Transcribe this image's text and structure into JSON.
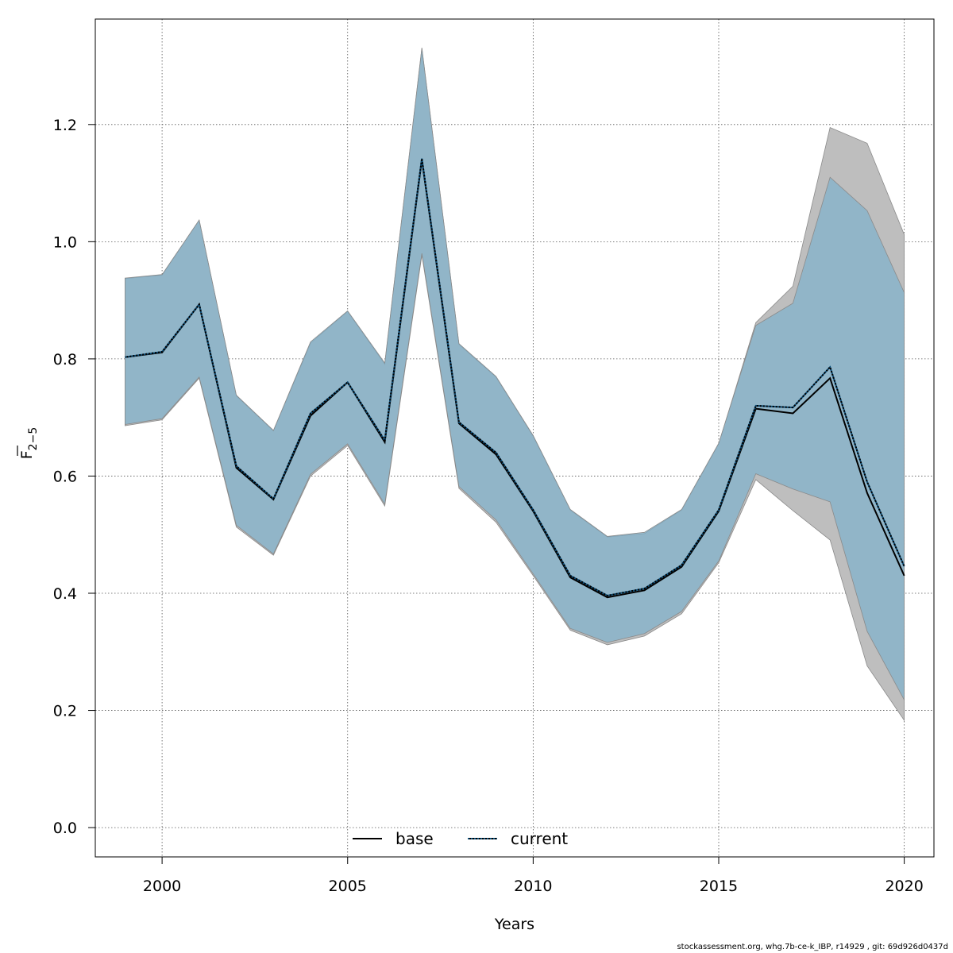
{
  "chart_data": {
    "type": "line",
    "xlabel": "Years",
    "ylabel": "F",
    "ylabel_subscript": "2−5",
    "xlim": [
      1998.2,
      2020.8
    ],
    "ylim": [
      -0.05,
      1.38
    ],
    "x_ticks": [
      2000,
      2005,
      2010,
      2015,
      2020
    ],
    "y_ticks": [
      0.0,
      0.2,
      0.4,
      0.6,
      0.8,
      1.0,
      1.2
    ],
    "y_tick_labels": [
      "0.0",
      "0.2",
      "0.4",
      "0.6",
      "0.8",
      "1.0",
      "1.2"
    ],
    "grid": true,
    "legend_position": "bottom",
    "x": [
      1999,
      2000,
      2001,
      2002,
      2003,
      2004,
      2005,
      2006,
      2007,
      2008,
      2009,
      2010,
      2011,
      2012,
      2013,
      2014,
      2015,
      2016,
      2017,
      2018,
      2019,
      2020
    ],
    "series": [
      {
        "name": "base",
        "style": "solid",
        "color": "#000000",
        "band_color": "#bebebe",
        "values": [
          0.803,
          0.811,
          0.893,
          0.614,
          0.56,
          0.703,
          0.76,
          0.658,
          1.14,
          0.69,
          0.637,
          0.54,
          0.427,
          0.393,
          0.405,
          0.445,
          0.54,
          0.715,
          0.707,
          0.767,
          0.571,
          0.43
        ],
        "lower": [
          0.686,
          0.696,
          0.767,
          0.513,
          0.465,
          0.6,
          0.652,
          0.549,
          0.977,
          0.579,
          0.521,
          0.43,
          0.337,
          0.312,
          0.327,
          0.365,
          0.452,
          0.594,
          0.541,
          0.491,
          0.276,
          0.183
        ],
        "upper": [
          0.937,
          0.943,
          1.037,
          0.737,
          0.677,
          0.827,
          0.881,
          0.791,
          1.33,
          0.825,
          0.769,
          0.668,
          0.542,
          0.496,
          0.502,
          0.542,
          0.655,
          0.862,
          0.924,
          1.195,
          1.168,
          1.012
        ]
      },
      {
        "name": "current",
        "style": "dotted",
        "color": "#0d4f7a",
        "band_color": "#7ab0ce",
        "values": [
          0.803,
          0.812,
          0.893,
          0.617,
          0.561,
          0.707,
          0.76,
          0.661,
          1.142,
          0.692,
          0.64,
          0.542,
          0.43,
          0.396,
          0.408,
          0.448,
          0.542,
          0.72,
          0.717,
          0.786,
          0.59,
          0.446
        ],
        "lower": [
          0.688,
          0.698,
          0.769,
          0.516,
          0.467,
          0.603,
          0.655,
          0.552,
          0.98,
          0.582,
          0.525,
          0.433,
          0.34,
          0.316,
          0.331,
          0.369,
          0.455,
          0.604,
          0.578,
          0.556,
          0.335,
          0.218
        ],
        "upper": [
          0.938,
          0.944,
          1.037,
          0.738,
          0.678,
          0.829,
          0.882,
          0.793,
          1.331,
          0.826,
          0.77,
          0.669,
          0.543,
          0.497,
          0.504,
          0.543,
          0.656,
          0.857,
          0.895,
          1.11,
          1.053,
          0.913
        ]
      }
    ]
  },
  "legend": {
    "items": [
      {
        "label": "base"
      },
      {
        "label": "current"
      }
    ]
  },
  "footer": {
    "text": "stockassessment.org, whg.7b-ce-k_IBP, r14929 , git: 69d926d0437d"
  }
}
